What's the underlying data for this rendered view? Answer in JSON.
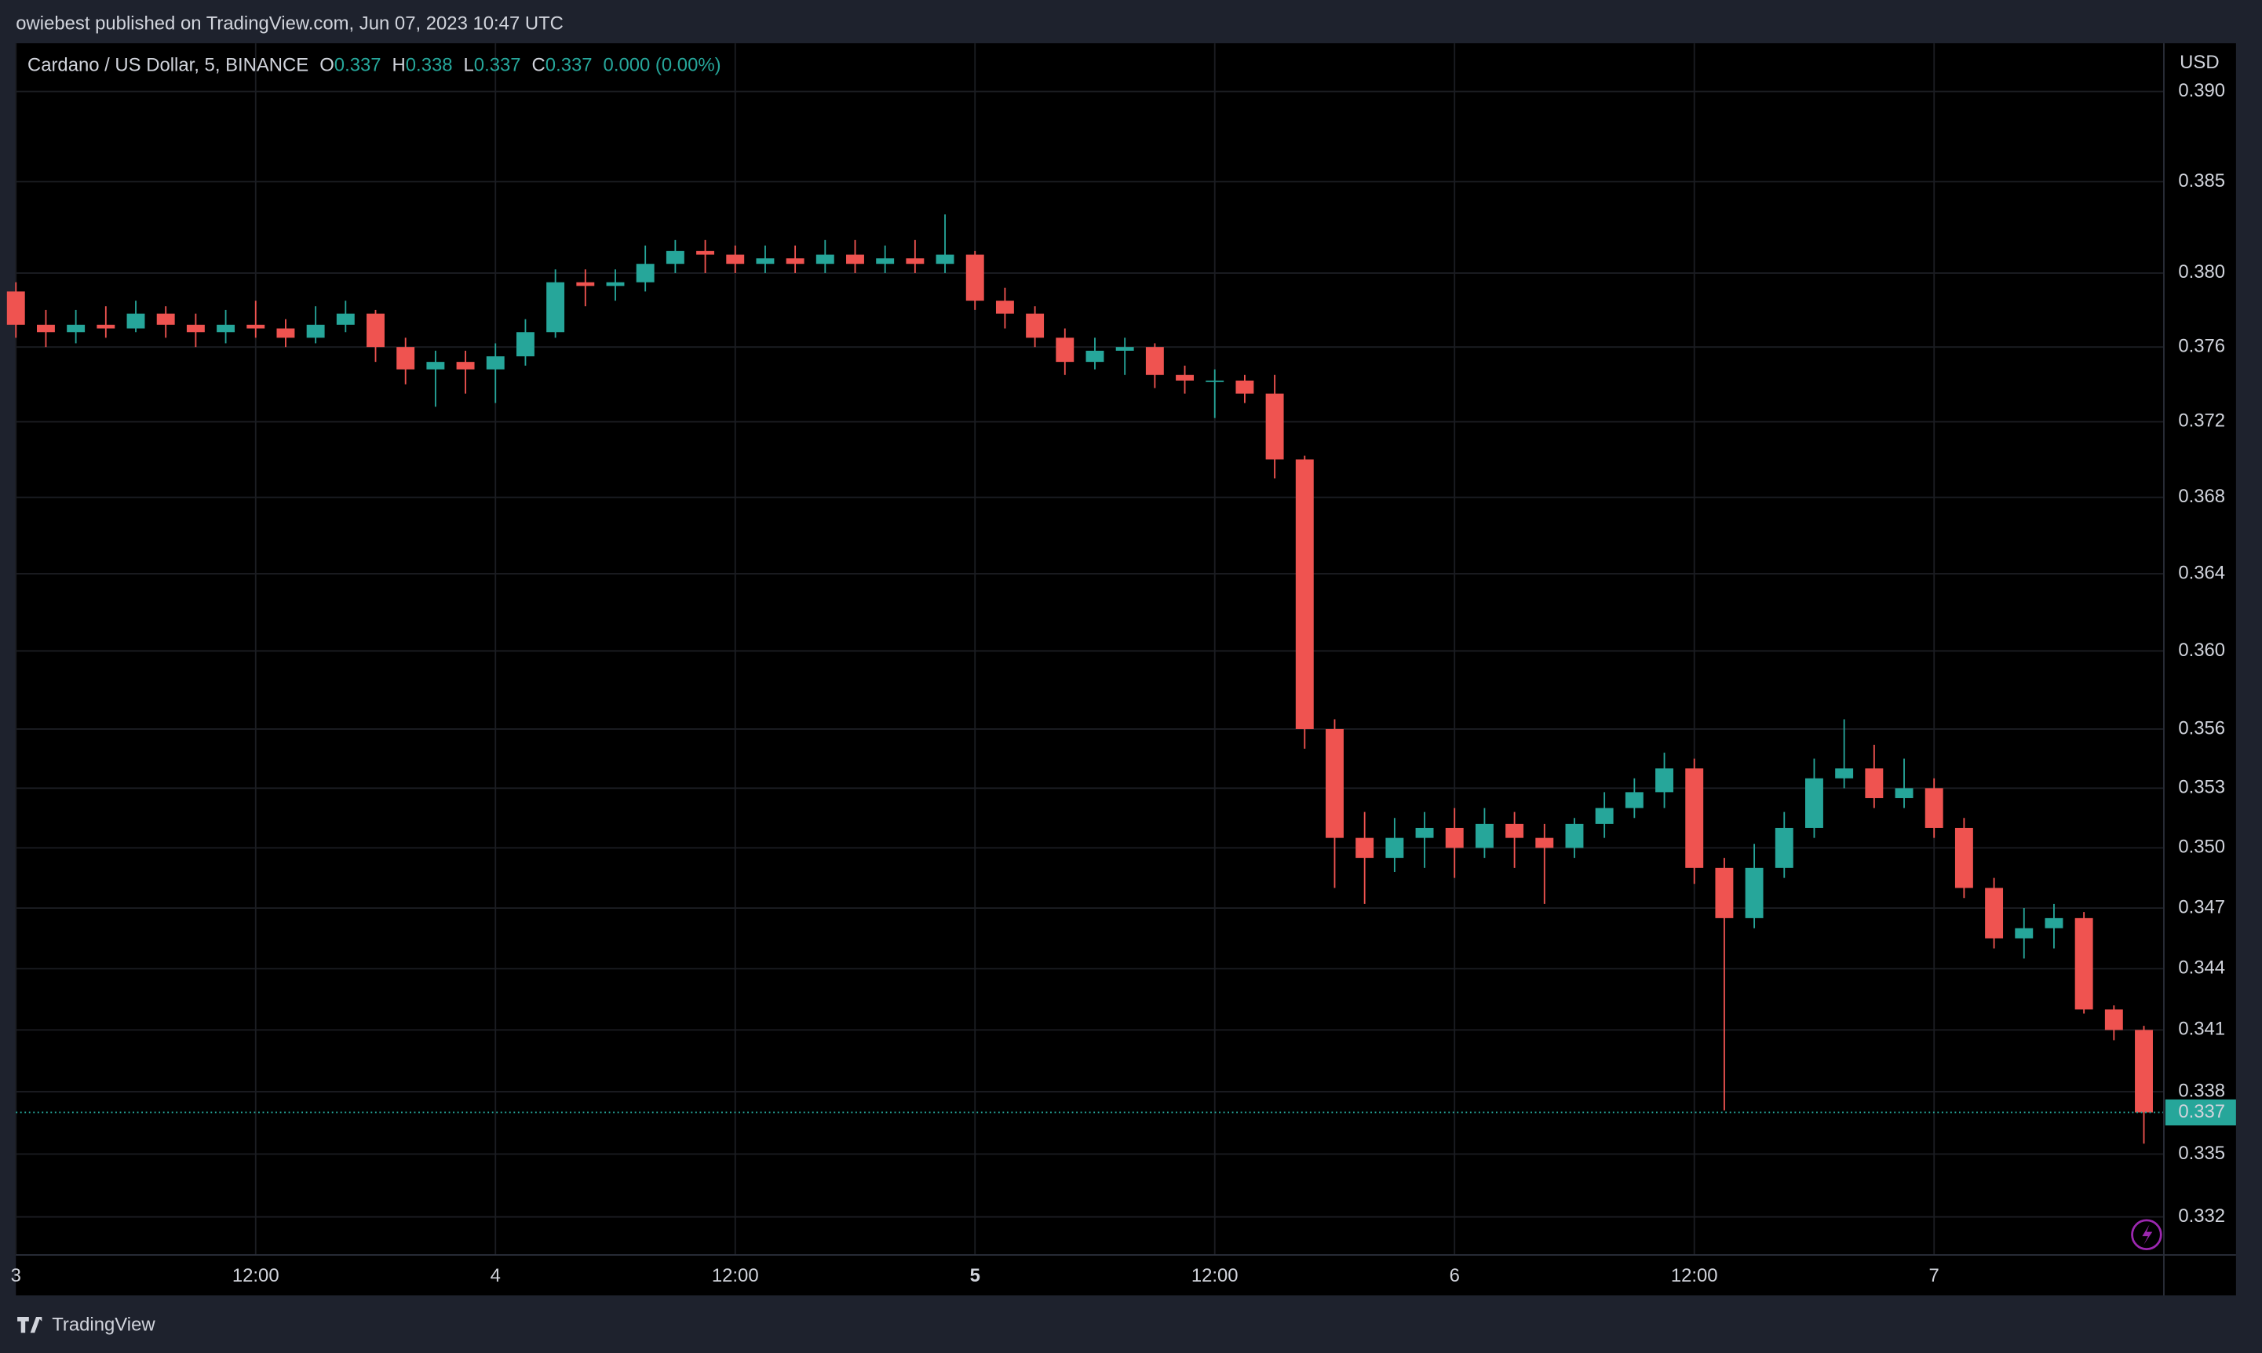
{
  "header": "owiebest published on TradingView.com, Jun 07, 2023 10:47 UTC",
  "footer": "TradingView",
  "chart_data": {
    "type": "candlestick",
    "title": "Cardano / US Dollar, 5, BINANCE",
    "legend": {
      "o_label": "O",
      "open": 0.337,
      "h_label": "H",
      "high": 0.338,
      "l_label": "L",
      "low": 0.337,
      "c_label": "C",
      "close": 0.337,
      "change": "0.000 (0.00%)"
    },
    "y_axis_label": "USD",
    "up_color": "#26a69a",
    "down_color": "#ef5350",
    "log_scale": true,
    "grid": true,
    "last_price": 0.337,
    "xlim": [
      0,
      107.5
    ],
    "xticks": [
      {
        "value": 0,
        "label": "3"
      },
      {
        "value": 12,
        "label": "12:00"
      },
      {
        "value": 24,
        "label": "4"
      },
      {
        "value": 36,
        "label": "12:00"
      },
      {
        "value": 48,
        "label": "5"
      },
      {
        "value": 60,
        "label": "12:00"
      },
      {
        "value": 72,
        "label": "6"
      },
      {
        "value": 84,
        "label": "12:00"
      },
      {
        "value": 96,
        "label": "7"
      }
    ],
    "ylim": [
      0.3302,
      0.3927
    ],
    "yticks": [
      {
        "value": 0.39,
        "label": "0.390"
      },
      0.385,
      {
        "value": 0.38,
        "label": "0.380"
      },
      0.376,
      0.372,
      0.368,
      0.364,
      {
        "value": 0.36,
        "label": "0.360"
      },
      0.356,
      0.353,
      {
        "value": 0.35,
        "label": "0.350"
      },
      0.347,
      0.344,
      0.341,
      0.338,
      0.335,
      0.332
    ],
    "x": [
      0,
      1.5,
      3,
      4.5,
      6,
      7.5,
      9,
      10.5,
      12,
      13.5,
      15,
      16.5,
      18,
      19.5,
      21,
      22.5,
      24,
      25.5,
      27,
      28.5,
      30,
      31.5,
      33,
      34.5,
      36,
      37.5,
      39,
      40.5,
      42,
      43.5,
      45,
      46.5,
      48,
      49.5,
      51,
      52.5,
      54,
      55.5,
      57,
      58.5,
      60,
      61.5,
      63,
      64.5,
      66,
      67.5,
      69,
      70.5,
      72,
      73.5,
      75,
      76.5,
      78,
      79.5,
      81,
      82.5,
      84,
      85.5,
      87,
      88.5,
      90,
      91.5,
      93,
      94.5,
      96,
      97.5,
      99,
      100.5,
      102,
      103.5,
      105,
      106.5
    ],
    "open": [
      0.379,
      0.3772,
      0.3768,
      0.3772,
      0.377,
      0.3778,
      0.3772,
      0.3768,
      0.3772,
      0.377,
      0.3765,
      0.3772,
      0.3778,
      0.376,
      0.3748,
      0.3752,
      0.3748,
      0.3755,
      0.3768,
      0.3795,
      0.3793,
      0.3795,
      0.3805,
      0.3812,
      0.381,
      0.3805,
      0.3808,
      0.3805,
      0.381,
      0.3805,
      0.3808,
      0.3805,
      0.381,
      0.3785,
      0.3778,
      0.3765,
      0.3752,
      0.3758,
      0.376,
      0.3745,
      0.3742,
      0.3742,
      0.3735,
      0.37,
      0.356,
      0.3505,
      0.3495,
      0.3505,
      0.351,
      0.35,
      0.3512,
      0.3505,
      0.35,
      0.3512,
      0.352,
      0.3528,
      0.354,
      0.349,
      0.3465,
      0.349,
      0.351,
      0.3535,
      0.354,
      0.3525,
      0.353,
      0.351,
      0.348,
      0.3455,
      0.346,
      0.3465,
      0.342,
      0.341
    ],
    "high": [
      0.3795,
      0.378,
      0.378,
      0.3782,
      0.3785,
      0.3782,
      0.3778,
      0.378,
      0.3785,
      0.3775,
      0.3782,
      0.3785,
      0.378,
      0.3765,
      0.3758,
      0.3758,
      0.3762,
      0.3775,
      0.3802,
      0.3802,
      0.3802,
      0.3815,
      0.3818,
      0.3818,
      0.3815,
      0.3815,
      0.3815,
      0.3818,
      0.3818,
      0.3815,
      0.3818,
      0.3832,
      0.3812,
      0.3792,
      0.3782,
      0.377,
      0.3765,
      0.3765,
      0.3762,
      0.375,
      0.3748,
      0.3745,
      0.3745,
      0.3702,
      0.3565,
      0.3518,
      0.3515,
      0.3518,
      0.352,
      0.352,
      0.3518,
      0.3512,
      0.3515,
      0.3528,
      0.3535,
      0.3548,
      0.3545,
      0.3495,
      0.3502,
      0.3518,
      0.3545,
      0.3565,
      0.3552,
      0.3545,
      0.3535,
      0.3515,
      0.3485,
      0.347,
      0.3472,
      0.3468,
      0.3422,
      0.3412
    ],
    "low": [
      0.3765,
      0.376,
      0.3762,
      0.3765,
      0.3768,
      0.3765,
      0.376,
      0.3762,
      0.3765,
      0.376,
      0.3762,
      0.3768,
      0.3752,
      0.374,
      0.3728,
      0.3735,
      0.373,
      0.375,
      0.3765,
      0.3782,
      0.3785,
      0.379,
      0.38,
      0.38,
      0.38,
      0.38,
      0.38,
      0.38,
      0.38,
      0.38,
      0.38,
      0.38,
      0.378,
      0.377,
      0.376,
      0.3745,
      0.3748,
      0.3745,
      0.3738,
      0.3735,
      0.3722,
      0.373,
      0.369,
      0.355,
      0.348,
      0.3472,
      0.3488,
      0.349,
      0.3485,
      0.3495,
      0.349,
      0.3472,
      0.3495,
      0.3505,
      0.3515,
      0.352,
      0.3482,
      0.3371,
      0.346,
      0.3485,
      0.3505,
      0.353,
      0.352,
      0.352,
      0.3505,
      0.3475,
      0.345,
      0.3445,
      0.345,
      0.3418,
      0.3405,
      0.3355
    ],
    "close": [
      0.3772,
      0.3768,
      0.3772,
      0.377,
      0.3778,
      0.3772,
      0.3768,
      0.3772,
      0.377,
      0.3765,
      0.3772,
      0.3778,
      0.376,
      0.3748,
      0.3752,
      0.3748,
      0.3755,
      0.3768,
      0.3795,
      0.3793,
      0.3795,
      0.3805,
      0.3812,
      0.381,
      0.3805,
      0.3808,
      0.3805,
      0.381,
      0.3805,
      0.3808,
      0.3805,
      0.381,
      0.3785,
      0.3778,
      0.3765,
      0.3752,
      0.3758,
      0.376,
      0.3745,
      0.3742,
      0.3742,
      0.3735,
      0.37,
      0.356,
      0.3505,
      0.3495,
      0.3505,
      0.351,
      0.35,
      0.3512,
      0.3505,
      0.35,
      0.3512,
      0.352,
      0.3528,
      0.354,
      0.349,
      0.3465,
      0.349,
      0.351,
      0.3535,
      0.354,
      0.3525,
      0.353,
      0.351,
      0.348,
      0.3455,
      0.346,
      0.3465,
      0.342,
      0.341,
      0.337
    ]
  }
}
